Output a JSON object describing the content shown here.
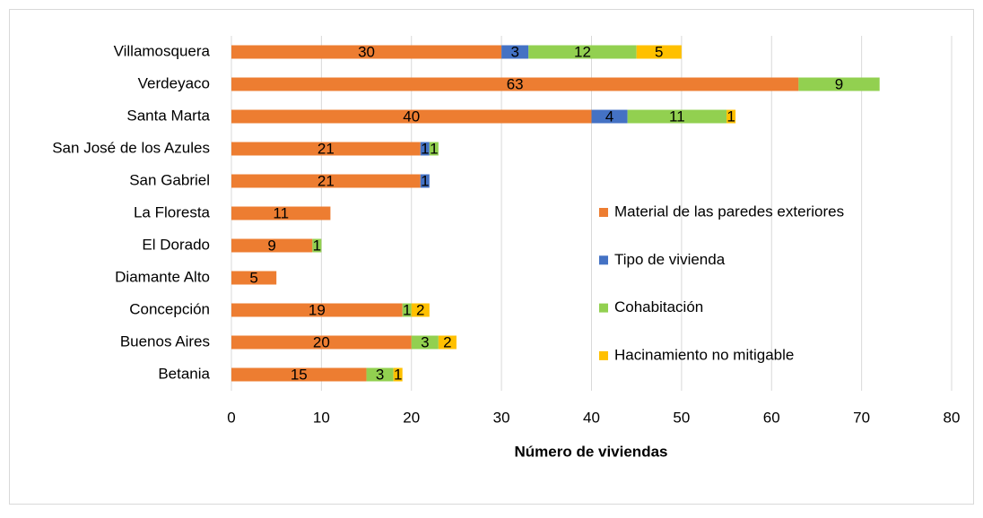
{
  "chart_data": {
    "type": "stacked_barh",
    "xlabel": "Número de viviendas",
    "categories": [
      "Villamosquera",
      "Verdeyaco",
      "Santa Marta",
      "San José de los Azules",
      "San Gabriel",
      "La Floresta",
      "El Dorado",
      "Diamante Alto",
      "Concepción",
      "Buenos Aires",
      "Betania"
    ],
    "series": [
      {
        "name": "Material de las paredes exteriores",
        "color": "#ed7d31",
        "values": [
          30,
          63,
          40,
          21,
          21,
          11,
          9,
          5,
          19,
          20,
          15
        ]
      },
      {
        "name": "Tipo de vivienda",
        "color": "#4472c4",
        "values": [
          3,
          null,
          4,
          1,
          1,
          null,
          null,
          null,
          null,
          null,
          null
        ]
      },
      {
        "name": "Cohabitación",
        "color": "#92d050",
        "values": [
          12,
          9,
          11,
          1,
          null,
          null,
          1,
          null,
          1,
          3,
          3
        ]
      },
      {
        "name": "Hacinamiento no mitigable",
        "color": "#ffc000",
        "values": [
          5,
          null,
          1,
          null,
          null,
          null,
          null,
          null,
          2,
          2,
          1
        ]
      }
    ],
    "xlim": [
      0,
      80
    ],
    "xticks": [
      0,
      10,
      20,
      30,
      40,
      50,
      60,
      70,
      80
    ],
    "grid": true
  }
}
